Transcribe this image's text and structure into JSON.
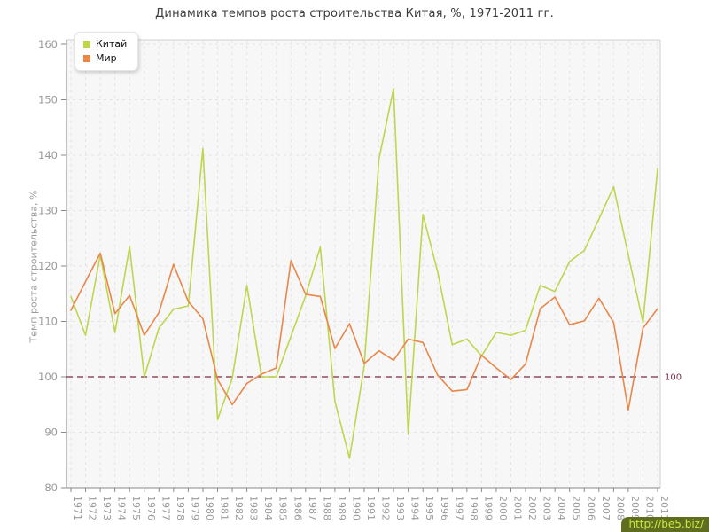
{
  "title": "Динамика темпов роста строительства Китая, %, 1971-2011 гг.",
  "y_axis_title": "Темп роста строительства, %",
  "watermark": "http://be5.biz/",
  "legend": {
    "items": [
      {
        "label": "Китай",
        "color": "#bdd64e"
      },
      {
        "label": "Мир",
        "color": "#e8874a"
      }
    ]
  },
  "reference_line": {
    "value": 100,
    "label": "100",
    "color": "#7d2b43"
  },
  "colors": {
    "plot_background": "#f7f7f7",
    "grid": "#e3e3e3",
    "axis": "#8a8a8a",
    "tick_text": "#9b9b9b",
    "plot_border": "#d2d2d2"
  },
  "chart_data": {
    "type": "line",
    "title": "Динамика темпов роста строительства Китая, %, 1971-2011 гг.",
    "xlabel": "",
    "ylabel": "Темп роста строительства, %",
    "ylim": [
      80,
      160
    ],
    "yticks": [
      80,
      90,
      100,
      110,
      120,
      130,
      140,
      150,
      160
    ],
    "grid": true,
    "legend_position": "top-left",
    "x": [
      1971,
      1972,
      1973,
      1974,
      1975,
      1976,
      1977,
      1978,
      1979,
      1980,
      1981,
      1982,
      1983,
      1984,
      1985,
      1986,
      1987,
      1988,
      1989,
      1990,
      1991,
      1992,
      1993,
      1994,
      1995,
      1996,
      1997,
      1998,
      1999,
      2000,
      2001,
      2002,
      2003,
      2004,
      2005,
      2006,
      2007,
      2008,
      2009,
      2010,
      2011
    ],
    "series": [
      {
        "name": "Китай",
        "color": "#bdd64e",
        "values": [
          114.5,
          107.5,
          122,
          108,
          123.5,
          100,
          108.8,
          112.2,
          112.8,
          141.2,
          92.3,
          99.8,
          116.5,
          100,
          100,
          107.3,
          114.6,
          123.4,
          95.6,
          85.3,
          102,
          139.3,
          152,
          89.6,
          129.3,
          119,
          105.8,
          106.8,
          103.8,
          108,
          107.5,
          108.4,
          116.5,
          115.4,
          120.8,
          122.8,
          128.5,
          134.3,
          122,
          109.8,
          137.6
        ]
      },
      {
        "name": "Мир",
        "color": "#e8874a",
        "values": [
          112,
          117.2,
          122.3,
          111.4,
          114.7,
          107.5,
          111.6,
          120.3,
          113.6,
          110.5,
          99.5,
          95,
          98.8,
          100.5,
          101.6,
          121,
          114.9,
          114.5,
          105.1,
          109.6,
          102.4,
          104.7,
          103,
          106.8,
          106.2,
          100.3,
          97.4,
          97.7,
          103.9,
          101.6,
          99.5,
          102.3,
          112.3,
          114.4,
          109.4,
          110.1,
          114.2,
          109.8,
          94,
          108.8,
          112.3
        ]
      }
    ]
  }
}
